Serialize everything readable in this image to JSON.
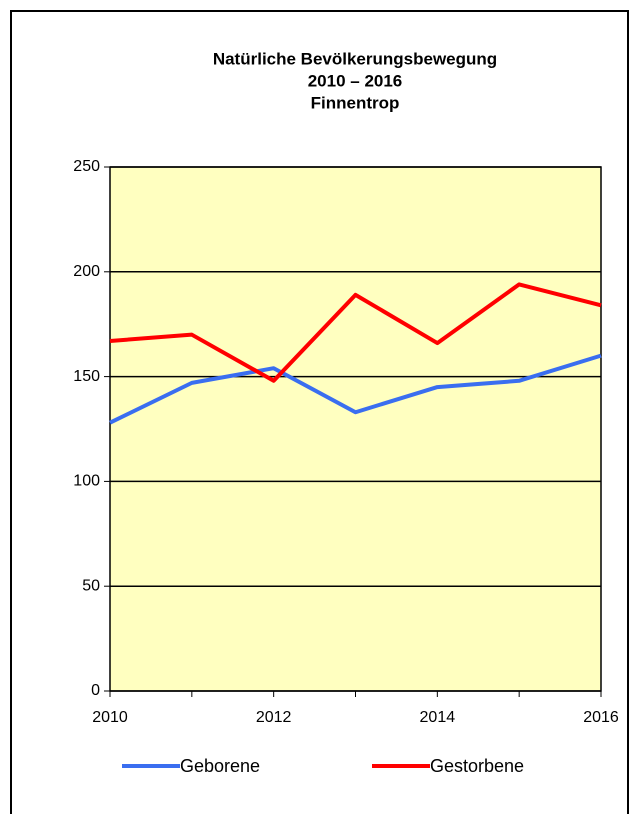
{
  "chart_data": {
    "type": "line",
    "title": [
      "Natürliche Bevölkerungsbewegung",
      "2010 – 2016",
      "Finnentrop"
    ],
    "x": [
      2010,
      2011,
      2012,
      2013,
      2014,
      2015,
      2016
    ],
    "series": [
      {
        "name": "Geborene",
        "color": "#3a6ef0",
        "values": [
          128,
          147,
          154,
          133,
          145,
          148,
          160
        ]
      },
      {
        "name": "Gestorbene",
        "color": "#ff0000",
        "values": [
          167,
          170,
          148,
          189,
          166,
          194,
          184
        ]
      }
    ],
    "xlim": [
      2010,
      2016
    ],
    "xticks": [
      2010,
      2012,
      2014,
      2016
    ],
    "ylim": [
      0,
      250
    ],
    "yticks": [
      0,
      50,
      100,
      150,
      200,
      250
    ],
    "grid": true,
    "legend": "bottom",
    "plot_background": "#ffffc0"
  }
}
